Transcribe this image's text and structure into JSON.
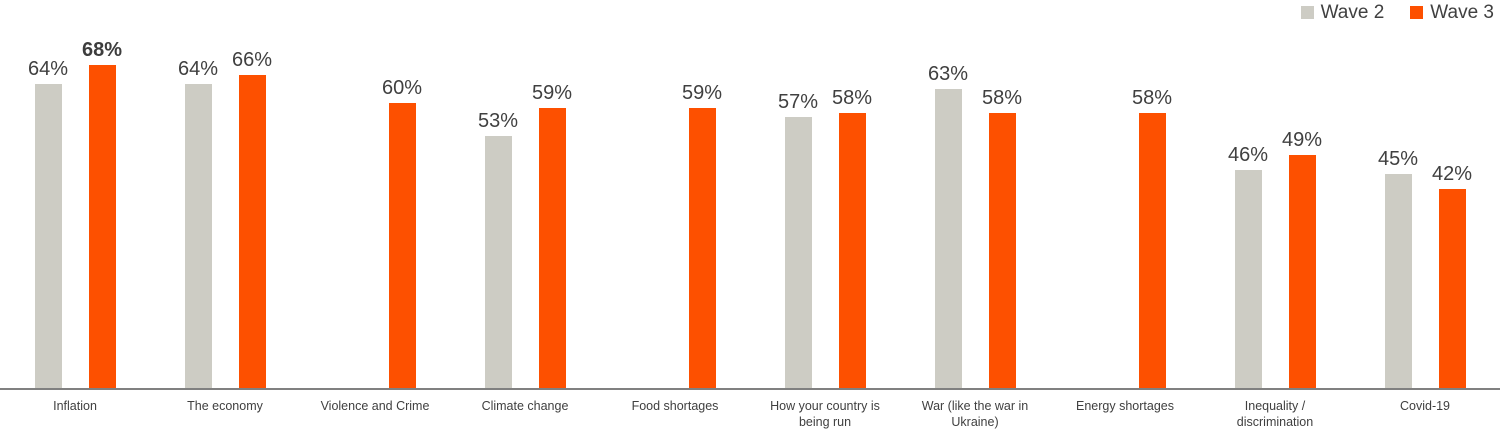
{
  "legend": {
    "position": "top-right",
    "items": [
      {
        "label": "Wave 2",
        "color": "#CDCCC4"
      },
      {
        "label": "Wave 3",
        "color": "#FD5000"
      }
    ]
  },
  "colors": {
    "wave2_bar": "#CDCCC4",
    "wave3_bar": "#FD5000",
    "label_text": "#404040",
    "axis_line": "#808080"
  },
  "chart_data": {
    "type": "bar",
    "title": "",
    "xlabel": "",
    "ylabel": "",
    "grid": false,
    "y_axis_visible": false,
    "data_labels": true,
    "value_suffix": "%",
    "ylim": [
      0,
      75
    ],
    "legend_position": "top-right",
    "categories": [
      "Inflation",
      "The economy",
      "Violence and Crime",
      "Climate change",
      "Food shortages",
      "How your country is being run",
      "War (like the war in Ukraine)",
      "Energy shortages",
      "Inequality / discrimination",
      "Covid-19"
    ],
    "series": [
      {
        "name": "Wave 2",
        "color": "#CDCCC4",
        "values": [
          64,
          64,
          null,
          53,
          null,
          57,
          63,
          null,
          46,
          45
        ]
      },
      {
        "name": "Wave 3",
        "color": "#FD5000",
        "values": [
          68,
          66,
          60,
          59,
          59,
          58,
          58,
          58,
          49,
          42
        ]
      }
    ],
    "emphasized_label": {
      "series_index": 1,
      "category_index": 0
    }
  }
}
